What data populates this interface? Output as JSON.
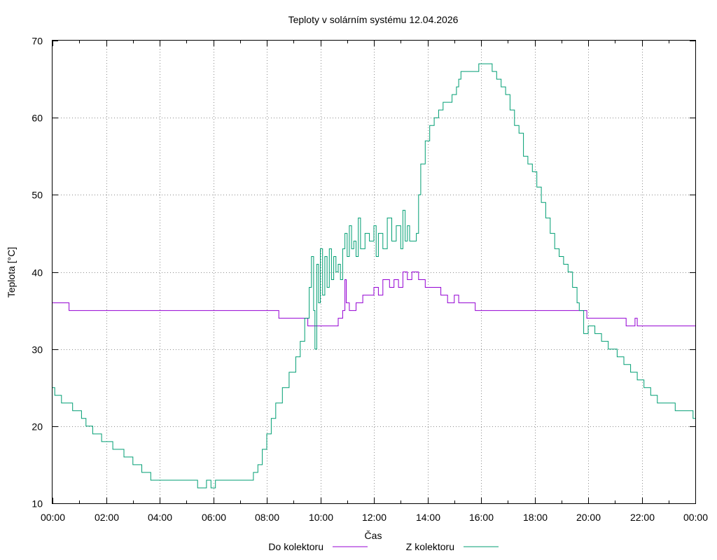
{
  "chart_data": {
    "type": "line",
    "title": "Teploty v solárním systému 12.04.2026",
    "xlabel": "Čas",
    "ylabel": "Teplota [°C]",
    "xlim": [
      "00:00",
      "24:00"
    ],
    "ylim": [
      10,
      70
    ],
    "x_ticks": [
      "00:00",
      "02:00",
      "04:00",
      "06:00",
      "08:00",
      "10:00",
      "12:00",
      "14:00",
      "16:00",
      "18:00",
      "20:00",
      "22:00",
      "00:00"
    ],
    "y_ticks": [
      "10",
      "20",
      "30",
      "40",
      "50",
      "60",
      "70"
    ],
    "grid": true,
    "legend_position": "bottom",
    "series": [
      {
        "name": "Do kolektoru",
        "color": "#9400d3",
        "points": [
          [
            "00:00",
            36
          ],
          [
            "00:35",
            36
          ],
          [
            "00:37",
            35
          ],
          [
            "08:25",
            35
          ],
          [
            "08:27",
            34
          ],
          [
            "09:30",
            34
          ],
          [
            "09:32",
            33
          ],
          [
            "10:25",
            33
          ],
          [
            "10:40",
            34
          ],
          [
            "10:50",
            35
          ],
          [
            "10:55",
            39
          ],
          [
            "10:58",
            36
          ],
          [
            "11:05",
            35
          ],
          [
            "11:20",
            36
          ],
          [
            "11:35",
            37
          ],
          [
            "11:50",
            37
          ],
          [
            "12:00",
            38
          ],
          [
            "12:10",
            37
          ],
          [
            "12:20",
            39
          ],
          [
            "12:35",
            38
          ],
          [
            "12:45",
            39
          ],
          [
            "12:55",
            38
          ],
          [
            "13:05",
            40
          ],
          [
            "13:15",
            39
          ],
          [
            "13:25",
            40
          ],
          [
            "13:35",
            40
          ],
          [
            "13:40",
            39
          ],
          [
            "13:55",
            38
          ],
          [
            "14:30",
            37
          ],
          [
            "14:45",
            36
          ],
          [
            "15:00",
            37
          ],
          [
            "15:10",
            36
          ],
          [
            "15:45",
            36
          ],
          [
            "15:47",
            35
          ],
          [
            "19:55",
            35
          ],
          [
            "19:57",
            34
          ],
          [
            "21:20",
            34
          ],
          [
            "21:25",
            33
          ],
          [
            "21:45",
            34
          ],
          [
            "21:50",
            33
          ],
          [
            "24:00",
            33
          ]
        ]
      },
      {
        "name": "Z kolektoru",
        "color": "#009e73",
        "points": [
          [
            "00:00",
            25
          ],
          [
            "00:05",
            24
          ],
          [
            "00:20",
            23
          ],
          [
            "00:45",
            22
          ],
          [
            "01:05",
            21
          ],
          [
            "01:15",
            20
          ],
          [
            "01:30",
            19
          ],
          [
            "01:50",
            18
          ],
          [
            "02:15",
            17
          ],
          [
            "02:40",
            16
          ],
          [
            "03:00",
            15
          ],
          [
            "03:20",
            14
          ],
          [
            "03:40",
            13
          ],
          [
            "05:25",
            12
          ],
          [
            "05:45",
            13
          ],
          [
            "05:55",
            12
          ],
          [
            "06:05",
            13
          ],
          [
            "07:30",
            14
          ],
          [
            "07:40",
            15
          ],
          [
            "07:50",
            17
          ],
          [
            "08:00",
            19
          ],
          [
            "08:10",
            21
          ],
          [
            "08:20",
            23
          ],
          [
            "08:35",
            25
          ],
          [
            "08:50",
            27
          ],
          [
            "09:05",
            29
          ],
          [
            "09:15",
            31
          ],
          [
            "09:25",
            34
          ],
          [
            "09:35",
            38
          ],
          [
            "09:40",
            42
          ],
          [
            "09:45",
            35
          ],
          [
            "09:48",
            30
          ],
          [
            "09:52",
            41
          ],
          [
            "09:56",
            36
          ],
          [
            "10:00",
            43
          ],
          [
            "10:05",
            37
          ],
          [
            "10:10",
            42
          ],
          [
            "10:15",
            38
          ],
          [
            "10:20",
            43
          ],
          [
            "10:25",
            39
          ],
          [
            "10:30",
            42
          ],
          [
            "10:35",
            40
          ],
          [
            "10:40",
            41
          ],
          [
            "10:45",
            39
          ],
          [
            "10:50",
            43
          ],
          [
            "10:55",
            45
          ],
          [
            "11:00",
            42
          ],
          [
            "11:05",
            46
          ],
          [
            "11:10",
            43
          ],
          [
            "11:15",
            44
          ],
          [
            "11:20",
            42
          ],
          [
            "11:25",
            47
          ],
          [
            "11:30",
            43
          ],
          [
            "11:40",
            45
          ],
          [
            "11:50",
            44
          ],
          [
            "12:00",
            46
          ],
          [
            "12:05",
            42
          ],
          [
            "12:10",
            45
          ],
          [
            "12:20",
            43
          ],
          [
            "12:30",
            47
          ],
          [
            "12:40",
            44
          ],
          [
            "12:50",
            46
          ],
          [
            "13:00",
            43
          ],
          [
            "13:05",
            48
          ],
          [
            "13:10",
            44
          ],
          [
            "13:15",
            46
          ],
          [
            "13:20",
            44
          ],
          [
            "13:35",
            45
          ],
          [
            "13:40",
            50
          ],
          [
            "13:45",
            54
          ],
          [
            "13:55",
            57
          ],
          [
            "14:05",
            59
          ],
          [
            "14:15",
            60
          ],
          [
            "14:25",
            61
          ],
          [
            "14:35",
            62
          ],
          [
            "14:55",
            63
          ],
          [
            "15:05",
            64
          ],
          [
            "15:10",
            65
          ],
          [
            "15:15",
            66
          ],
          [
            "15:55",
            67
          ],
          [
            "16:25",
            66
          ],
          [
            "16:35",
            65
          ],
          [
            "16:45",
            64
          ],
          [
            "16:55",
            63
          ],
          [
            "17:05",
            61
          ],
          [
            "17:15",
            59
          ],
          [
            "17:25",
            58
          ],
          [
            "17:35",
            55
          ],
          [
            "17:45",
            54
          ],
          [
            "17:55",
            53
          ],
          [
            "18:05",
            51
          ],
          [
            "18:15",
            49
          ],
          [
            "18:25",
            47
          ],
          [
            "18:35",
            45
          ],
          [
            "18:45",
            43
          ],
          [
            "18:55",
            42
          ],
          [
            "19:05",
            41
          ],
          [
            "19:15",
            40
          ],
          [
            "19:25",
            38
          ],
          [
            "19:35",
            36
          ],
          [
            "19:40",
            35
          ],
          [
            "19:50",
            32
          ],
          [
            "20:00",
            33
          ],
          [
            "20:15",
            32
          ],
          [
            "20:30",
            31
          ],
          [
            "20:45",
            30
          ],
          [
            "21:05",
            29
          ],
          [
            "21:20",
            28
          ],
          [
            "21:35",
            27
          ],
          [
            "21:50",
            26
          ],
          [
            "22:05",
            25
          ],
          [
            "22:20",
            24
          ],
          [
            "22:35",
            23
          ],
          [
            "23:05",
            23
          ],
          [
            "23:15",
            22
          ],
          [
            "23:55",
            21
          ],
          [
            "24:00",
            21
          ]
        ]
      }
    ]
  }
}
